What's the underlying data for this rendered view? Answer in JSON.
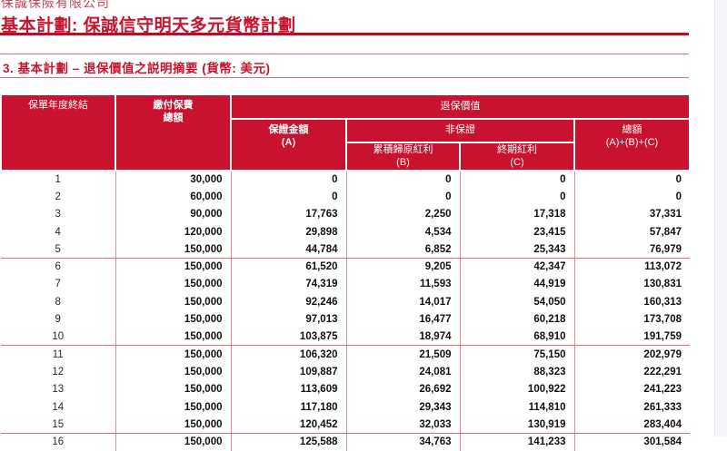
{
  "header": {
    "company": "保誠保險有限公司",
    "title": "基本計劃: 保誠信守明天多元貨幣計劃",
    "section": "3.  基本計劃 – 退保價值之説明摘要 (貨幣: 美元)"
  },
  "colors": {
    "brand_red": "#c9122e",
    "rule_dark_red": "#b80e27",
    "rule_light_red": "#e26d7e",
    "body_grid_pink": "#e58b99",
    "header_text": "#ffffff"
  },
  "table": {
    "columns": {
      "policy_year": "保單年度終結",
      "premiums_paid": [
        "繳付保費",
        "總額"
      ],
      "surrender_value": "退保價值",
      "guaranteed": [
        "保證金額",
        "(A)"
      ],
      "non_guaranteed": "非保證",
      "reversionary_bonus": [
        "累積歸原紅利",
        "(B)"
      ],
      "terminal_bonus": [
        "終期紅利",
        "(C)"
      ],
      "total": [
        "總額",
        "(A)+(B)+(C)"
      ]
    },
    "rows": [
      [
        "1",
        "30,000",
        "0",
        "0",
        "0",
        "0"
      ],
      [
        "2",
        "60,000",
        "0",
        "0",
        "0",
        "0"
      ],
      [
        "3",
        "90,000",
        "17,763",
        "2,250",
        "17,318",
        "37,331"
      ],
      [
        "4",
        "120,000",
        "29,898",
        "4,534",
        "23,415",
        "57,847"
      ],
      [
        "5",
        "150,000",
        "44,784",
        "6,852",
        "25,343",
        "76,979"
      ],
      [
        "6",
        "150,000",
        "61,520",
        "9,205",
        "42,347",
        "113,072"
      ],
      [
        "7",
        "150,000",
        "74,319",
        "11,593",
        "44,919",
        "130,831"
      ],
      [
        "8",
        "150,000",
        "92,246",
        "14,017",
        "54,050",
        "160,313"
      ],
      [
        "9",
        "150,000",
        "97,013",
        "16,477",
        "60,218",
        "173,708"
      ],
      [
        "10",
        "150,000",
        "103,875",
        "18,974",
        "68,910",
        "191,759"
      ],
      [
        "11",
        "150,000",
        "106,320",
        "21,509",
        "75,150",
        "202,979"
      ],
      [
        "12",
        "150,000",
        "109,887",
        "24,081",
        "88,323",
        "222,291"
      ],
      [
        "13",
        "150,000",
        "113,609",
        "26,692",
        "100,922",
        "241,223"
      ],
      [
        "14",
        "150,000",
        "117,180",
        "29,343",
        "114,810",
        "261,333"
      ],
      [
        "15",
        "150,000",
        "120,452",
        "32,033",
        "130,919",
        "283,404"
      ],
      [
        "16",
        "150,000",
        "125,588",
        "34,763",
        "141,233",
        "301,584"
      ]
    ],
    "group_separator_after": [
      5,
      10,
      15
    ]
  }
}
